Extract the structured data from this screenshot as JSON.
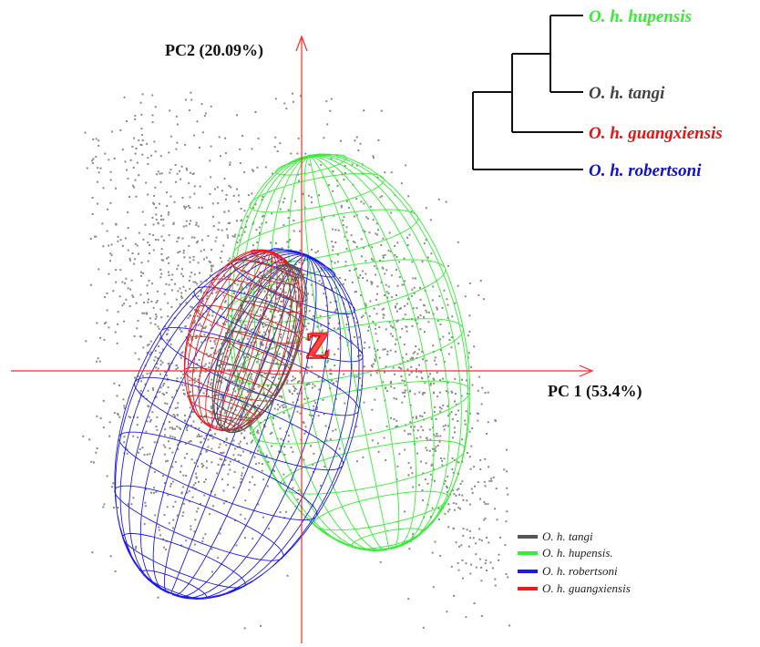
{
  "chart_data": {
    "type": "scatter",
    "title": "",
    "xlabel": "PC 1 (53.4%)",
    "ylabel": "PC2 (20.09%)",
    "axis_origin_label": "Z",
    "grid": false,
    "legend_position": "bottom-right",
    "colors": {
      "axis": "#ff2a2a",
      "points": "#8a8a8a",
      "tree": "#111111"
    },
    "series": [
      {
        "name": "O. h. tangi",
        "color": "#555555"
      },
      {
        "name": "O. h. hupensis.",
        "color": "#33ee33"
      },
      {
        "name": "O. h. robertsoni",
        "color": "#1a1aee"
      },
      {
        "name": "O. h. guangxiensis",
        "color": "#ee1a1a"
      }
    ],
    "dendrogram": {
      "topology": "(((O. h. hupensis, O. h. tangi), O. h. guangxiensis), O. h. robertsoni)",
      "tips": [
        {
          "label": "O. h. hupensis",
          "color": "#33ee33"
        },
        {
          "label": "O. h. tangi",
          "color": "#444444"
        },
        {
          "label": "O. h. guangxiensis",
          "color": "#ee1111"
        },
        {
          "label": "O. h. robertsoni",
          "color": "#1111cc"
        }
      ]
    }
  }
}
